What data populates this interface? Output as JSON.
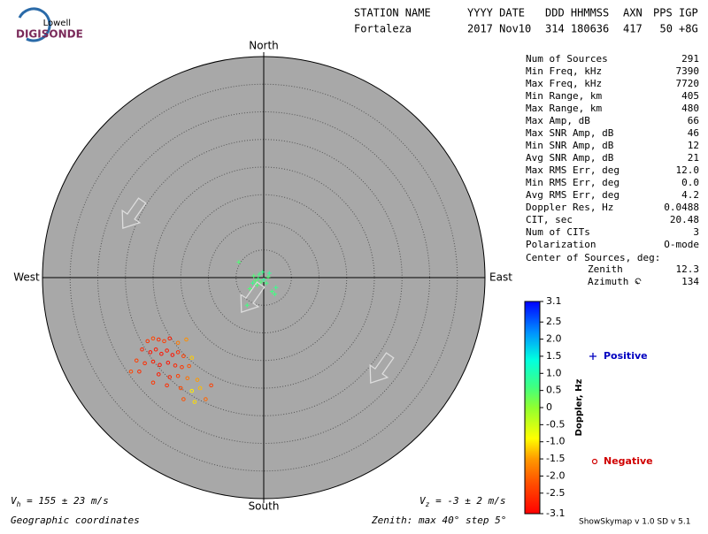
{
  "chart_data": {
    "type": "skymap",
    "logo": {
      "top": "Lowell",
      "bottom": "DIGISONDE"
    },
    "header": {
      "columns": [
        "STATION NAME",
        "YYYY DATE",
        "DDD HHMMSS",
        "AXN",
        "PPS",
        "IGP"
      ],
      "row": [
        "Fortaleza",
        "2017 Nov10",
        "314 180636",
        "417",
        "50",
        "+8G"
      ]
    },
    "directions": {
      "north": "North",
      "south": "South",
      "west": "West",
      "east": "East"
    },
    "rlim": [
      0,
      40
    ],
    "rticks": [
      5,
      10,
      15,
      20,
      25,
      30,
      35,
      40
    ],
    "stats": [
      [
        "Num of Sources",
        "291"
      ],
      [
        "Min Freq, kHz",
        "7390"
      ],
      [
        "Max Freq, kHz",
        "7720"
      ],
      [
        "Min Range, km",
        "405"
      ],
      [
        "Max Range, km",
        "480"
      ],
      [
        "Max Amp, dB",
        "66"
      ],
      [
        "Max SNR Amp, dB",
        "46"
      ],
      [
        "Min SNR Amp, dB",
        "12"
      ],
      [
        "Avg SNR Amp, dB",
        "21"
      ],
      [
        "Max RMS Err, deg",
        "12.0"
      ],
      [
        "Min RMS Err, deg",
        "0.0"
      ],
      [
        "Avg RMS Err, deg",
        "4.2"
      ],
      [
        "Doppler Res, Hz",
        "0.0488"
      ],
      [
        "CIT, sec",
        "20.48"
      ],
      [
        "Num of CITs",
        "3"
      ],
      [
        "Polarization",
        "O-mode"
      ]
    ],
    "center_title": "Center of Sources, deg:",
    "center": [
      [
        "Zenith",
        "12.3"
      ],
      [
        "Azimuth",
        "134"
      ]
    ],
    "colorbar_label": "Doppler, Hz",
    "clim": [
      -3.1,
      3.1
    ],
    "cticks": [
      3.1,
      2.5,
      {
        "value": 2,
        "label": "2.0"
      },
      1.5,
      {
        "value": 1,
        "label": "1.0"
      },
      0.5,
      0,
      {
        "value": -0.5,
        "label": "-0.5"
      },
      {
        "value": -1,
        "label": "-1.0"
      },
      {
        "value": -1.5,
        "label": "-1.5"
      },
      {
        "value": -2,
        "label": "-2.0"
      },
      {
        "value": -2.5,
        "label": "-2.5"
      },
      -3.1
    ],
    "series": [
      {
        "name": "Positive",
        "color": "#0000c0",
        "x": [
          -1.5,
          -1,
          -0.5,
          -2,
          -1.8,
          -0.8,
          -1.2,
          0,
          0.5,
          0.8,
          2.2,
          1.5,
          -4.5,
          -3,
          -0.2,
          -2.5,
          2,
          1
        ],
        "y": [
          -0.6,
          -0.2,
          -0.8,
          -1,
          0.3,
          0.6,
          -1.4,
          -0.4,
          -1,
          0.1,
          -1.8,
          -2.5,
          2.8,
          -5,
          1,
          -2,
          -3,
          0.8
        ],
        "doppler": [
          0.5,
          0.6,
          0.5,
          0.7,
          0.5,
          0.6,
          0.5,
          0.8,
          0.6,
          0.5,
          0.7,
          0.6,
          0.5,
          0.6,
          0.7,
          0.5,
          0.6,
          0.8
        ]
      },
      {
        "name": "Negative",
        "color": "#d00000",
        "x": [
          -21,
          -20,
          -19,
          -18,
          -17,
          -15.5,
          -14,
          -22,
          -20.5,
          -19.5,
          -18.5,
          -17.5,
          -16.5,
          -15.5,
          -14.5,
          -13,
          -23,
          -21.5,
          -20,
          -18.8,
          -17.3,
          -16,
          -14.8,
          -13.5,
          -24,
          -22.5,
          -19,
          -17,
          -15.5,
          -13.8,
          -12,
          -20,
          -17.5,
          -15,
          -13,
          -11.5,
          -14.5,
          -12.5,
          -10.5,
          -9.5
        ],
        "y": [
          -11.5,
          -11,
          -11.2,
          -11.5,
          -11,
          -11.8,
          -11.2,
          -13,
          -13.5,
          -13,
          -13.8,
          -13.2,
          -14,
          -13.5,
          -14.2,
          -14.5,
          -15,
          -15.5,
          -15.2,
          -15.8,
          -15.4,
          -15.9,
          -16.2,
          -16,
          -17,
          -17,
          -17.5,
          -18,
          -17.8,
          -18.2,
          -18.5,
          -19,
          -19.5,
          -20,
          -20.5,
          -20,
          -22,
          -22.5,
          -22,
          -19.5
        ],
        "doppler": [
          -2.5,
          -2.3,
          -2.6,
          -2.4,
          -2.8,
          -1.8,
          -1.6,
          -2.7,
          -2.9,
          -2.8,
          -2.9,
          -2.8,
          -2.9,
          -2.6,
          -2.4,
          -1.2,
          -2.4,
          -2.6,
          -2.8,
          -2.9,
          -2.9,
          -2.7,
          -2.5,
          -2.2,
          -2.3,
          -2.6,
          -2.8,
          -2.7,
          -2.4,
          -1.9,
          -1.5,
          -2.5,
          -2.6,
          -2.3,
          -1,
          -1.3,
          -2.2,
          -1.1,
          -2,
          -2.4
        ]
      }
    ],
    "vh": {
      "symbol": "V",
      "sub": "h",
      "text": " = 155 ± 23 m/s"
    },
    "vz": {
      "symbol": "V",
      "sub": "z",
      "text": " = -3 ± 2 m/s"
    },
    "coordinates": "Geographic coordinates",
    "zenith_note": "Zenith: max 40°  step 5°",
    "version": "ShowSkymap v 1.0  SD v 5.1"
  }
}
